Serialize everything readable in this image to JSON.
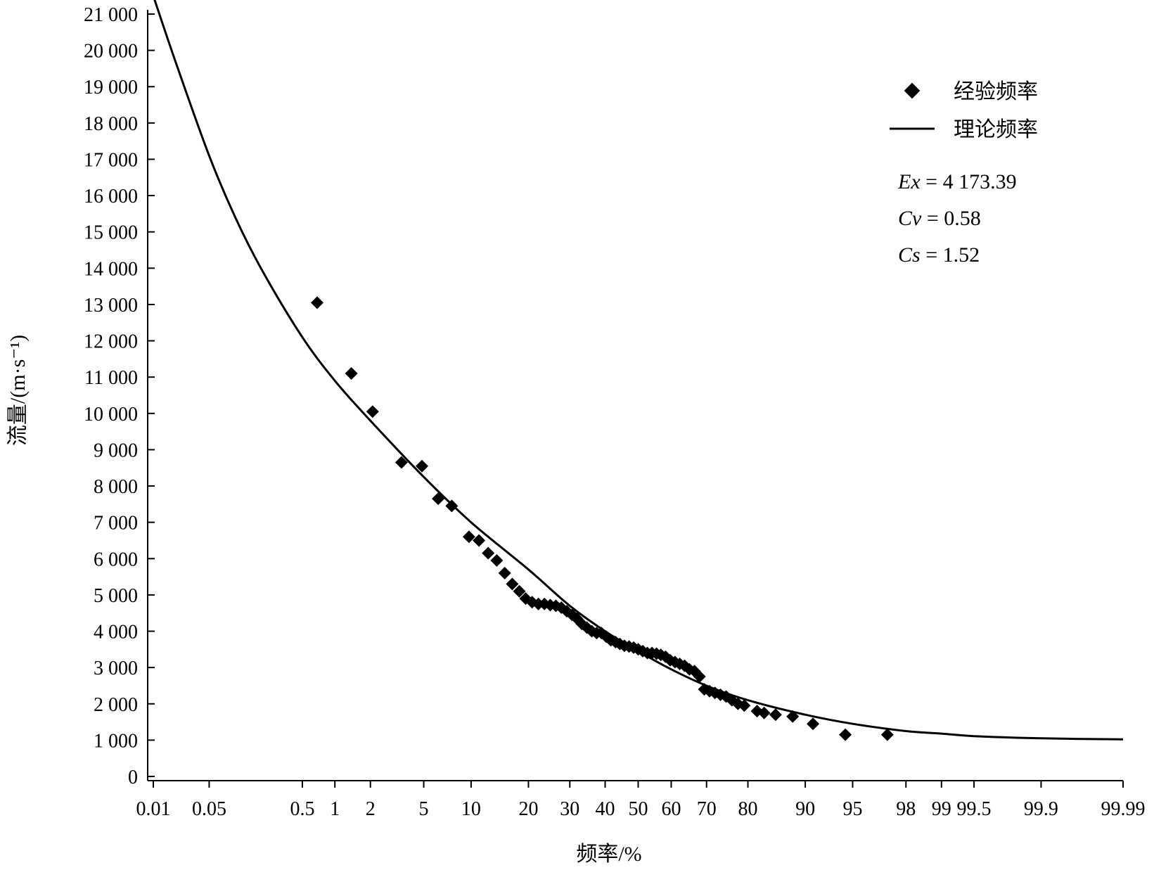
{
  "chart_data": {
    "type": "scatter",
    "xlabel": "频率/%",
    "ylabel": "流量/(m·s⁻¹)",
    "ylim": [
      0,
      21000
    ],
    "yticks": [
      0,
      1000,
      2000,
      3000,
      4000,
      5000,
      6000,
      7000,
      8000,
      9000,
      10000,
      11000,
      12000,
      13000,
      14000,
      15000,
      16000,
      17000,
      18000,
      19000,
      20000,
      21000
    ],
    "ytick_labels": [
      "0",
      "1 000",
      "2 000",
      "3 000",
      "4 000",
      "5 000",
      "6 000",
      "7 000",
      "8 000",
      "9 000",
      "10 000",
      "11 000",
      "12 000",
      "13 000",
      "14 000",
      "15 000",
      "16 000",
      "17 000",
      "18 000",
      "19 000",
      "20 000",
      "21 000"
    ],
    "x_scale": "probability",
    "xlim": [
      0.01,
      99.99
    ],
    "xticks": [
      0.01,
      0.05,
      0.5,
      1,
      2,
      5,
      10,
      20,
      30,
      40,
      50,
      60,
      70,
      80,
      90,
      95,
      98,
      99,
      99.5,
      99.9,
      99.99
    ],
    "xtick_labels": [
      "0.01",
      "0.05",
      "0.5",
      "1",
      "2",
      "5",
      "10",
      "20",
      "30",
      "40",
      "50",
      "60",
      "70",
      "80",
      "90",
      "95",
      "98",
      "99",
      "99.5",
      "99.9",
      "99.99"
    ],
    "legend": {
      "placement": "top-right",
      "entries": [
        {
          "label": "经验频率",
          "marker": "diamond"
        },
        {
          "label": "理论频率",
          "marker": "line"
        }
      ]
    },
    "parameters": [
      {
        "name": "Ex",
        "value": "4 173.39"
      },
      {
        "name": "Cv",
        "value": "0.58"
      },
      {
        "name": "Cs",
        "value": "1.52"
      }
    ],
    "series": [
      {
        "name": "经验频率",
        "type": "scatter",
        "points": [
          [
            0.69,
            13050
          ],
          [
            1.39,
            11100
          ],
          [
            2.08,
            10050
          ],
          [
            3.47,
            8650
          ],
          [
            4.86,
            8550
          ],
          [
            6.25,
            7650
          ],
          [
            7.64,
            7450
          ],
          [
            9.72,
            6600
          ],
          [
            11.1,
            6500
          ],
          [
            12.5,
            6150
          ],
          [
            13.9,
            5950
          ],
          [
            15.3,
            5600
          ],
          [
            16.7,
            5300
          ],
          [
            18.1,
            5100
          ],
          [
            19.4,
            4900
          ],
          [
            20.8,
            4800
          ],
          [
            22.2,
            4750
          ],
          [
            23.6,
            4750
          ],
          [
            25.0,
            4720
          ],
          [
            26.4,
            4700
          ],
          [
            27.8,
            4650
          ],
          [
            29.2,
            4550
          ],
          [
            30.6,
            4450
          ],
          [
            31.9,
            4350
          ],
          [
            33.3,
            4200
          ],
          [
            34.7,
            4100
          ],
          [
            36.1,
            4000
          ],
          [
            37.5,
            3950
          ],
          [
            38.9,
            3950
          ],
          [
            40.3,
            3850
          ],
          [
            41.7,
            3750
          ],
          [
            43.1,
            3700
          ],
          [
            44.4,
            3650
          ],
          [
            45.8,
            3600
          ],
          [
            47.2,
            3580
          ],
          [
            48.6,
            3550
          ],
          [
            50.0,
            3500
          ],
          [
            51.4,
            3450
          ],
          [
            52.8,
            3400
          ],
          [
            54.2,
            3400
          ],
          [
            55.6,
            3380
          ],
          [
            56.9,
            3350
          ],
          [
            58.3,
            3300
          ],
          [
            59.7,
            3200
          ],
          [
            61.1,
            3150
          ],
          [
            62.5,
            3100
          ],
          [
            63.9,
            3050
          ],
          [
            65.3,
            2950
          ],
          [
            66.7,
            2900
          ],
          [
            68.1,
            2750
          ],
          [
            69.4,
            2400
          ],
          [
            70.8,
            2350
          ],
          [
            72.2,
            2300
          ],
          [
            73.6,
            2250
          ],
          [
            75.0,
            2200
          ],
          [
            76.4,
            2100
          ],
          [
            77.8,
            2000
          ],
          [
            79.2,
            1950
          ],
          [
            81.9,
            1800
          ],
          [
            83.3,
            1750
          ],
          [
            85.4,
            1700
          ],
          [
            88.2,
            1650
          ],
          [
            91.0,
            1450
          ],
          [
            94.4,
            1150
          ],
          [
            97.2,
            1150
          ]
        ]
      },
      {
        "name": "理论频率",
        "type": "line",
        "points": [
          [
            0.01,
            21500
          ],
          [
            0.02,
            19600
          ],
          [
            0.05,
            17100
          ],
          [
            0.1,
            15400
          ],
          [
            0.2,
            13900
          ],
          [
            0.5,
            12100
          ],
          [
            1,
            10900
          ],
          [
            2,
            9800
          ],
          [
            5,
            8250
          ],
          [
            10,
            7000
          ],
          [
            20,
            5700
          ],
          [
            30,
            4700
          ],
          [
            40,
            4000
          ],
          [
            50,
            3450
          ],
          [
            60,
            2950
          ],
          [
            70,
            2500
          ],
          [
            80,
            2100
          ],
          [
            90,
            1700
          ],
          [
            95,
            1450
          ],
          [
            98,
            1250
          ],
          [
            99,
            1180
          ],
          [
            99.5,
            1110
          ],
          [
            99.9,
            1050
          ],
          [
            99.99,
            1020
          ]
        ]
      }
    ]
  }
}
